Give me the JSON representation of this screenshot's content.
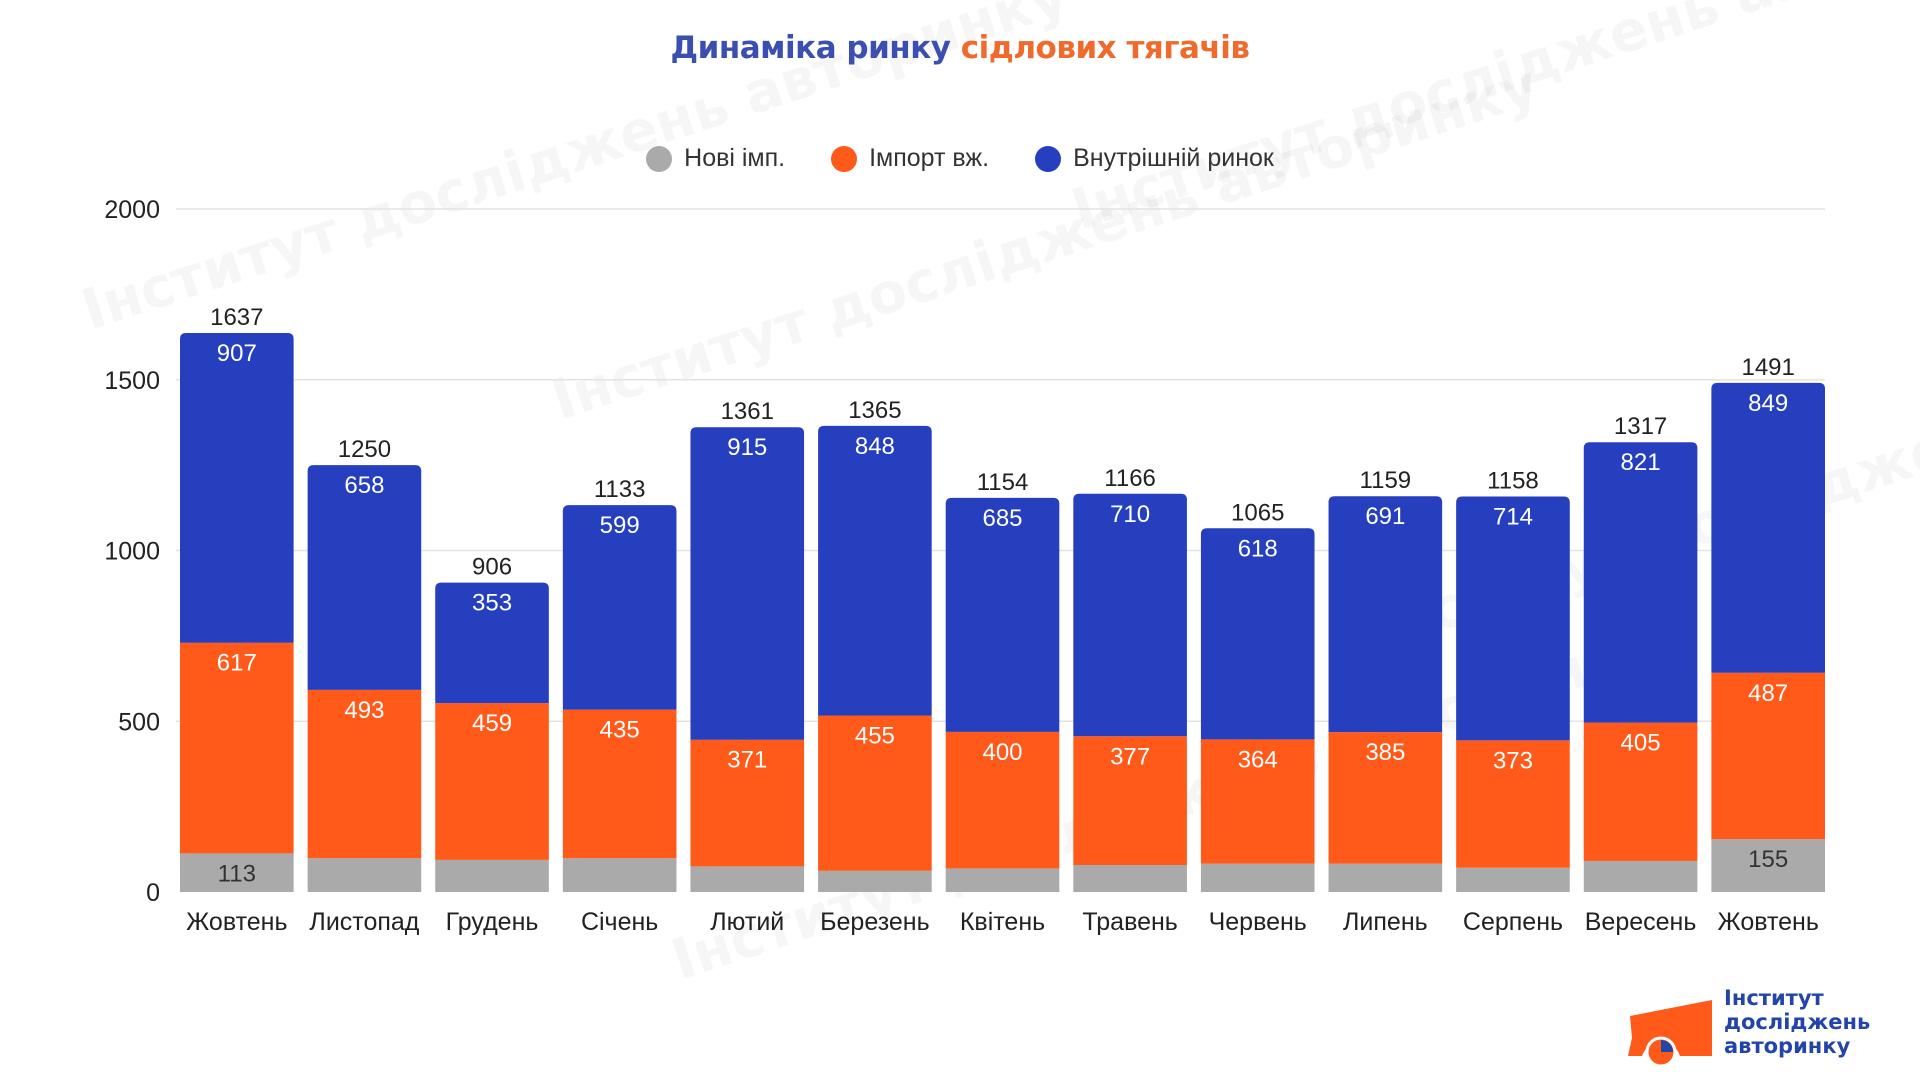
{
  "title": {
    "part1": "Динаміка ринку",
    "part2": "сідлових тягачів"
  },
  "colors": {
    "title_blue": "#3a4fb0",
    "title_orange": "#f06a2c",
    "nove": "#aaaaaa",
    "import": "#ff5a1a",
    "domestic": "#253fbe",
    "grid": "#e3e3e3"
  },
  "logo": {
    "line1": "Інститут",
    "line2": "досліджень",
    "line3": "авторинку",
    "watermark": "Інститут досліджень авторинку"
  },
  "chart_data": {
    "type": "bar",
    "stacked": true,
    "title": "Динаміка ринку сідлових тягачів",
    "xlabel": "",
    "ylabel": "",
    "ylim": [
      0,
      2000
    ],
    "yticks": [
      0,
      500,
      1000,
      1500,
      2000
    ],
    "grid": true,
    "legend_position": "top-center",
    "categories": [
      "Жовтень",
      "Листопад",
      "Грудень",
      "Січень",
      "Лютий",
      "Березень",
      "Квітень",
      "Травень",
      "Червень",
      "Липень",
      "Серпень",
      "Вересень",
      "Жовтень"
    ],
    "series": [
      {
        "name": "Нові імп.",
        "color": "#aaaaaa",
        "values": [
          113,
          99,
          94,
          99,
          75,
          62,
          69,
          79,
          83,
          83,
          71,
          91,
          155
        ],
        "labels_shown": [
          true,
          false,
          false,
          false,
          false,
          false,
          false,
          false,
          false,
          false,
          false,
          false,
          true
        ]
      },
      {
        "name": "Імпорт вж.",
        "color": "#ff5a1a",
        "values": [
          617,
          493,
          459,
          435,
          371,
          455,
          400,
          377,
          364,
          385,
          373,
          405,
          487
        ]
      },
      {
        "name": "Внутрішній ринок",
        "color": "#253fbe",
        "values": [
          907,
          658,
          353,
          599,
          915,
          848,
          685,
          710,
          618,
          691,
          714,
          821,
          849
        ]
      }
    ],
    "totals": [
      1637,
      1250,
      906,
      1133,
      1361,
      1365,
      1154,
      1166,
      1065,
      1159,
      1158,
      1317,
      1491
    ]
  }
}
